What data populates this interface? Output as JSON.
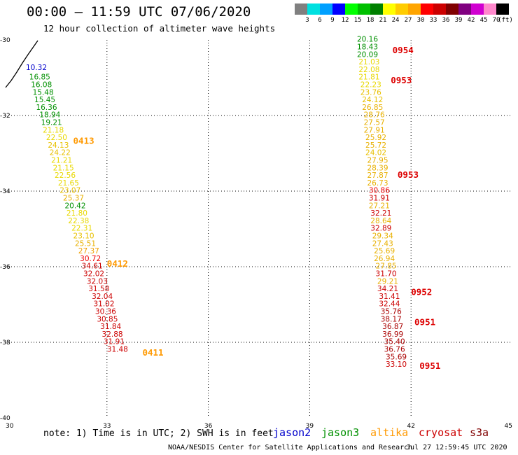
{
  "header": {
    "title": "00:00 – 11:59 UTC 07/06/2020",
    "subtitle": "12 hour collection of altimeter wave heights"
  },
  "legend": {
    "colors": [
      "#808080",
      "#00e0e0",
      "#00a0ff",
      "#0000ff",
      "#00ff00",
      "#00c000",
      "#008000",
      "#ffff00",
      "#ffcc00",
      "#ffa500",
      "#ff0000",
      "#cc0000",
      "#800000",
      "#800080",
      "#d000d0",
      "#ff88cc",
      "#000000"
    ],
    "labels": [
      "3",
      "6",
      "9",
      "12",
      "15",
      "18",
      "21",
      "24",
      "27",
      "30",
      "33",
      "36",
      "39",
      "42",
      "45",
      "70",
      "(ft)"
    ]
  },
  "footer": {
    "note": "note: 1) Time is in UTC; 2) SWH is in feet",
    "satellites": [
      {
        "name": "jason2",
        "color": "#0000cc"
      },
      {
        "name": "jason3",
        "color": "#009000"
      },
      {
        "name": "altika",
        "color": "#ff9900"
      },
      {
        "name": "cryosat",
        "color": "#cc0000"
      },
      {
        "name": "s3a",
        "color": "#800000"
      }
    ],
    "credit": "NOAA/NESDIS Center for Satellite Applications and Research",
    "timestamp": "Jul 27 12:59:45 UTC 2020"
  },
  "chart_data": {
    "type": "scatter",
    "xlim": [
      30,
      45
    ],
    "ylim": [
      -40,
      -30
    ],
    "x_ticks": [
      "30",
      "33",
      "36",
      "39",
      "42",
      "45"
    ],
    "y_ticks": [
      "-30",
      "-32",
      "-34",
      "-36",
      "-38",
      "-40"
    ],
    "grid": true,
    "tracks": [
      {
        "points": [
          {
            "x": 30.6,
            "y": -30.8,
            "label": "10.32",
            "color": "#0000cc"
          },
          {
            "x": 30.7,
            "y": -31.05,
            "label": "16.85",
            "color": "#009000"
          },
          {
            "x": 30.75,
            "y": -31.25,
            "label": "16.08",
            "color": "#009000"
          },
          {
            "x": 30.8,
            "y": -31.45,
            "label": "15.48",
            "color": "#009000"
          },
          {
            "x": 30.85,
            "y": -31.65,
            "label": "15.45",
            "color": "#009000"
          },
          {
            "x": 30.9,
            "y": -31.85,
            "label": "16.36",
            "color": "#009000"
          },
          {
            "x": 31.0,
            "y": -32.05,
            "label": "18.94",
            "color": "#009000"
          },
          {
            "x": 31.05,
            "y": -32.25,
            "label": "19.21",
            "color": "#009000"
          },
          {
            "x": 31.1,
            "y": -32.45,
            "label": "21.18",
            "color": "#e8d800"
          },
          {
            "x": 31.2,
            "y": -32.65,
            "label": "22.50",
            "color": "#e8d800"
          },
          {
            "x": 31.25,
            "y": -32.85,
            "label": "24.13",
            "color": "#e8c000"
          },
          {
            "x": 31.3,
            "y": -33.05,
            "label": "24.22",
            "color": "#e8c000"
          },
          {
            "x": 31.35,
            "y": -33.25,
            "label": "21.21",
            "color": "#e8d800"
          },
          {
            "x": 31.4,
            "y": -33.45,
            "label": "21.15",
            "color": "#e8d800"
          },
          {
            "x": 31.45,
            "y": -33.65,
            "label": "22.56",
            "color": "#e8d800"
          },
          {
            "x": 31.55,
            "y": -33.85,
            "label": "21.65",
            "color": "#e8d800"
          },
          {
            "x": 31.6,
            "y": -34.05,
            "label": "23.07",
            "color": "#e8c000"
          },
          {
            "x": 31.7,
            "y": -34.25,
            "label": "25.37",
            "color": "#e8b000"
          },
          {
            "x": 31.75,
            "y": -34.45,
            "label": "20.42",
            "color": "#009000"
          },
          {
            "x": 31.8,
            "y": -34.65,
            "label": "21.80",
            "color": "#e8d800"
          },
          {
            "x": 31.85,
            "y": -34.85,
            "label": "22.38",
            "color": "#e8d800"
          },
          {
            "x": 31.95,
            "y": -35.05,
            "label": "22.31",
            "color": "#e8d800"
          },
          {
            "x": 32.0,
            "y": -35.25,
            "label": "23.10",
            "color": "#e8c000"
          },
          {
            "x": 32.05,
            "y": -35.45,
            "label": "25.51",
            "color": "#e8b000"
          },
          {
            "x": 32.15,
            "y": -35.65,
            "label": "27.37",
            "color": "#f0a000"
          },
          {
            "x": 32.2,
            "y": -35.85,
            "label": "30.72",
            "color": "#ee0000"
          },
          {
            "x": 32.25,
            "y": -36.05,
            "label": "34.61",
            "color": "#cc0000"
          },
          {
            "x": 32.3,
            "y": -36.25,
            "label": "32.02",
            "color": "#cc0000"
          },
          {
            "x": 32.4,
            "y": -36.45,
            "label": "32.03",
            "color": "#cc0000"
          },
          {
            "x": 32.45,
            "y": -36.65,
            "label": "31.58",
            "color": "#cc0000"
          },
          {
            "x": 32.55,
            "y": -36.85,
            "label": "32.04",
            "color": "#cc0000"
          },
          {
            "x": 32.6,
            "y": -37.05,
            "label": "31.02",
            "color": "#cc0000"
          },
          {
            "x": 32.65,
            "y": -37.25,
            "label": "30.36",
            "color": "#cc0000"
          },
          {
            "x": 32.7,
            "y": -37.45,
            "label": "30.85",
            "color": "#cc0000"
          },
          {
            "x": 32.8,
            "y": -37.65,
            "label": "31.84",
            "color": "#cc0000"
          },
          {
            "x": 32.85,
            "y": -37.85,
            "label": "32.88",
            "color": "#cc0000"
          },
          {
            "x": 32.9,
            "y": -38.05,
            "label": "31.91",
            "color": "#cc0000"
          },
          {
            "x": 33.0,
            "y": -38.25,
            "label": "31.48",
            "color": "#cc0000"
          }
        ]
      },
      {
        "points": [
          {
            "x": 40.4,
            "y": -30.05,
            "label": "20.16",
            "color": "#009000"
          },
          {
            "x": 40.4,
            "y": -30.25,
            "label": "18.43",
            "color": "#009000"
          },
          {
            "x": 40.4,
            "y": -30.45,
            "label": "20.09",
            "color": "#009000"
          },
          {
            "x": 40.45,
            "y": -30.65,
            "label": "21.03",
            "color": "#e8d800"
          },
          {
            "x": 40.45,
            "y": -30.85,
            "label": "22.08",
            "color": "#e8d800"
          },
          {
            "x": 40.45,
            "y": -31.05,
            "label": "21.81",
            "color": "#e8d800"
          },
          {
            "x": 40.5,
            "y": -31.25,
            "label": "22.23",
            "color": "#e8d800"
          },
          {
            "x": 40.5,
            "y": -31.45,
            "label": "23.76",
            "color": "#e8c000"
          },
          {
            "x": 40.55,
            "y": -31.65,
            "label": "24.12",
            "color": "#e8c000"
          },
          {
            "x": 40.55,
            "y": -31.85,
            "label": "26.85",
            "color": "#e8b000"
          },
          {
            "x": 40.6,
            "y": -32.05,
            "label": "28.76",
            "color": "#e8b000"
          },
          {
            "x": 40.6,
            "y": -32.25,
            "label": "27.57",
            "color": "#e8b000"
          },
          {
            "x": 40.6,
            "y": -32.45,
            "label": "27.91",
            "color": "#e8b000"
          },
          {
            "x": 40.65,
            "y": -32.65,
            "label": "25.92",
            "color": "#e8b000"
          },
          {
            "x": 40.65,
            "y": -32.85,
            "label": "25.72",
            "color": "#e8b000"
          },
          {
            "x": 40.65,
            "y": -33.05,
            "label": "24.02",
            "color": "#e8c000"
          },
          {
            "x": 40.7,
            "y": -33.25,
            "label": "27.95",
            "color": "#e8b000"
          },
          {
            "x": 40.7,
            "y": -33.45,
            "label": "28.39",
            "color": "#e8b000"
          },
          {
            "x": 40.7,
            "y": -33.65,
            "label": "27.87",
            "color": "#e8b000"
          },
          {
            "x": 40.7,
            "y": -33.85,
            "label": "26.73",
            "color": "#e8b000"
          },
          {
            "x": 40.75,
            "y": -34.05,
            "label": "30.86",
            "color": "#ee0000"
          },
          {
            "x": 40.75,
            "y": -34.25,
            "label": "31.91",
            "color": "#cc0000"
          },
          {
            "x": 40.75,
            "y": -34.45,
            "label": "27.21",
            "color": "#e8b000"
          },
          {
            "x": 40.8,
            "y": -34.65,
            "label": "32.21",
            "color": "#cc0000"
          },
          {
            "x": 40.8,
            "y": -34.85,
            "label": "28.64",
            "color": "#e8b000"
          },
          {
            "x": 40.8,
            "y": -35.05,
            "label": "32.89",
            "color": "#cc0000"
          },
          {
            "x": 40.85,
            "y": -35.25,
            "label": "29.34",
            "color": "#e8b000"
          },
          {
            "x": 40.85,
            "y": -35.45,
            "label": "27.43",
            "color": "#e8b000"
          },
          {
            "x": 40.9,
            "y": -35.65,
            "label": "25.69",
            "color": "#e8b000"
          },
          {
            "x": 40.9,
            "y": -35.85,
            "label": "26.94",
            "color": "#e8b000"
          },
          {
            "x": 40.95,
            "y": -36.05,
            "label": "27.85",
            "color": "#e8b000"
          },
          {
            "x": 40.95,
            "y": -36.25,
            "label": "31.70",
            "color": "#cc0000"
          },
          {
            "x": 41.0,
            "y": -36.45,
            "label": "29.21",
            "color": "#e8b000"
          },
          {
            "x": 41.0,
            "y": -36.65,
            "label": "34.21",
            "color": "#cc0000"
          },
          {
            "x": 41.05,
            "y": -36.85,
            "label": "31.41",
            "color": "#cc0000"
          },
          {
            "x": 41.05,
            "y": -37.05,
            "label": "32.44",
            "color": "#cc0000"
          },
          {
            "x": 41.1,
            "y": -37.25,
            "label": "35.76",
            "color": "#aa0000"
          },
          {
            "x": 41.1,
            "y": -37.45,
            "label": "38.17",
            "color": "#aa0000"
          },
          {
            "x": 41.15,
            "y": -37.65,
            "label": "36.87",
            "color": "#aa0000"
          },
          {
            "x": 41.15,
            "y": -37.85,
            "label": "36.99",
            "color": "#aa0000"
          },
          {
            "x": 41.2,
            "y": -38.05,
            "label": "35.40",
            "color": "#aa0000"
          },
          {
            "x": 41.2,
            "y": -38.25,
            "label": "36.76",
            "color": "#aa0000"
          },
          {
            "x": 41.25,
            "y": -38.45,
            "label": "35.69",
            "color": "#aa0000"
          },
          {
            "x": 41.25,
            "y": -38.65,
            "label": "33.10",
            "color": "#cc0000"
          }
        ]
      }
    ],
    "time_labels": [
      {
        "x": 32.0,
        "y": -32.75,
        "text": "0413",
        "color": "#ff9900"
      },
      {
        "x": 33.0,
        "y": -36.0,
        "text": "0412",
        "color": "#ff9900"
      },
      {
        "x": 34.05,
        "y": -38.35,
        "text": "0411",
        "color": "#ff9900"
      },
      {
        "x": 41.45,
        "y": -30.35,
        "text": "0954",
        "color": "#dd0000"
      },
      {
        "x": 41.4,
        "y": -31.15,
        "text": "0953",
        "color": "#dd0000"
      },
      {
        "x": 41.6,
        "y": -33.65,
        "text": "0953",
        "color": "#dd0000"
      },
      {
        "x": 42.0,
        "y": -36.75,
        "text": "0952",
        "color": "#dd0000"
      },
      {
        "x": 42.1,
        "y": -37.55,
        "text": "0951",
        "color": "#dd0000"
      },
      {
        "x": 42.25,
        "y": -38.7,
        "text": "0951",
        "color": "#dd0000"
      }
    ]
  }
}
